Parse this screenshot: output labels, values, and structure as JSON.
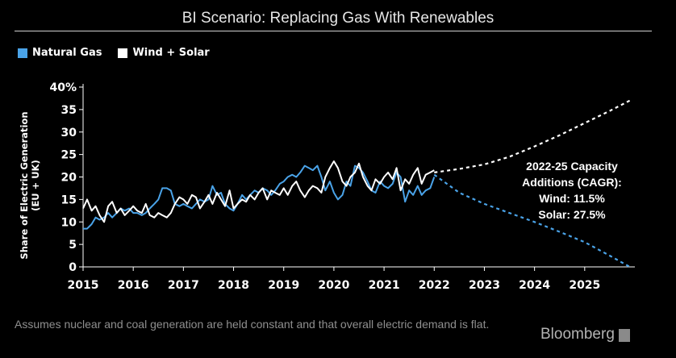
{
  "header": {
    "title": "BI Scenario: Replacing Gas With Renewables"
  },
  "legend": [
    {
      "label": "Natural Gas",
      "color": "#4aa3e8"
    },
    {
      "label": "Wind + Solar",
      "color": "#ffffff"
    }
  ],
  "annotation": {
    "lines": [
      "2022-25 Capacity",
      "Additions (CAGR):",
      "Wind: 11.5%",
      "Solar: 27.5%"
    ]
  },
  "footnote": "Assumes nuclear and coal generation are held constant and that overall electric demand is flat.",
  "brand": "Bloomberg",
  "chart_data": {
    "type": "line",
    "title": "BI Scenario: Replacing Gas With Renewables",
    "ylabel_lines": [
      "Share of Electric Generation",
      "(EU + UK)"
    ],
    "ylim": [
      0,
      40
    ],
    "xlim": [
      2015,
      2026
    ],
    "y_ticks": [
      0,
      5,
      10,
      15,
      20,
      25,
      30,
      35,
      40
    ],
    "y_tick_labels": [
      "0",
      "5",
      "10",
      "15",
      "20",
      "25",
      "30",
      "35",
      "40%"
    ],
    "x_ticks": [
      2015,
      2016,
      2017,
      2018,
      2019,
      2020,
      2021,
      2022,
      2023,
      2024,
      2025
    ],
    "x_tick_labels": [
      "2015",
      "2016",
      "2017",
      "2018",
      "2019",
      "2020",
      "2021",
      "2022",
      "2023",
      "2024",
      "2025"
    ],
    "grid": false,
    "legend_position": "top-left",
    "series": [
      {
        "name": "Natural Gas",
        "color": "#4aa3e8",
        "style": "solid",
        "x": [
          2015.0,
          2015.08,
          2015.17,
          2015.25,
          2015.33,
          2015.42,
          2015.5,
          2015.58,
          2015.67,
          2015.75,
          2015.83,
          2015.92,
          2016.0,
          2016.08,
          2016.17,
          2016.25,
          2016.33,
          2016.42,
          2016.5,
          2016.58,
          2016.67,
          2016.75,
          2016.83,
          2016.92,
          2017.0,
          2017.08,
          2017.17,
          2017.25,
          2017.33,
          2017.42,
          2017.5,
          2017.58,
          2017.67,
          2017.75,
          2017.83,
          2017.92,
          2018.0,
          2018.08,
          2018.17,
          2018.25,
          2018.33,
          2018.42,
          2018.5,
          2018.58,
          2018.67,
          2018.75,
          2018.83,
          2018.92,
          2019.0,
          2019.08,
          2019.17,
          2019.25,
          2019.33,
          2019.42,
          2019.5,
          2019.58,
          2019.67,
          2019.75,
          2019.83,
          2019.92,
          2020.0,
          2020.08,
          2020.17,
          2020.25,
          2020.33,
          2020.42,
          2020.5,
          2020.58,
          2020.67,
          2020.75,
          2020.83,
          2020.92,
          2021.0,
          2021.08,
          2021.17,
          2021.25,
          2021.33,
          2021.42,
          2021.5,
          2021.58,
          2021.67,
          2021.75,
          2021.83,
          2021.92,
          2022.0
        ],
        "values": [
          8.5,
          8.5,
          9.5,
          11,
          10.5,
          11,
          12,
          11,
          12,
          13,
          12.5,
          13,
          12,
          12,
          11.5,
          12,
          13,
          14,
          15,
          17.5,
          17.5,
          17,
          14,
          13.5,
          14,
          13.5,
          13,
          14,
          15,
          14.5,
          15,
          18,
          16,
          16.5,
          14,
          13,
          12.5,
          14,
          16,
          15,
          16,
          17,
          16.5,
          17.5,
          17,
          16,
          17,
          18.5,
          19,
          20,
          20.5,
          20,
          21,
          22.5,
          22,
          21.5,
          22.5,
          20,
          17,
          19,
          16.5,
          15,
          16,
          19,
          18,
          22.5,
          22,
          21,
          19,
          17,
          16.5,
          19,
          18,
          17.5,
          18.5,
          21,
          20,
          14.5,
          17,
          16,
          18,
          16,
          17,
          17.5,
          20
        ]
      },
      {
        "name": "Wind + Solar",
        "color": "#ffffff",
        "style": "solid",
        "x": [
          2015.0,
          2015.08,
          2015.17,
          2015.25,
          2015.33,
          2015.42,
          2015.5,
          2015.58,
          2015.67,
          2015.75,
          2015.83,
          2015.92,
          2016.0,
          2016.08,
          2016.17,
          2016.25,
          2016.33,
          2016.42,
          2016.5,
          2016.58,
          2016.67,
          2016.75,
          2016.83,
          2016.92,
          2017.0,
          2017.08,
          2017.17,
          2017.25,
          2017.33,
          2017.42,
          2017.5,
          2017.58,
          2017.67,
          2017.75,
          2017.83,
          2017.92,
          2018.0,
          2018.08,
          2018.17,
          2018.25,
          2018.33,
          2018.42,
          2018.5,
          2018.58,
          2018.67,
          2018.75,
          2018.83,
          2018.92,
          2019.0,
          2019.08,
          2019.17,
          2019.25,
          2019.33,
          2019.42,
          2019.5,
          2019.58,
          2019.67,
          2019.75,
          2019.83,
          2019.92,
          2020.0,
          2020.08,
          2020.17,
          2020.25,
          2020.33,
          2020.42,
          2020.5,
          2020.58,
          2020.67,
          2020.75,
          2020.83,
          2020.92,
          2021.0,
          2021.08,
          2021.17,
          2021.25,
          2021.33,
          2021.42,
          2021.5,
          2021.58,
          2021.67,
          2021.75,
          2021.83,
          2021.92,
          2022.0
        ],
        "values": [
          13,
          15,
          12.5,
          13.5,
          11.5,
          10,
          13.5,
          14.5,
          12,
          13,
          11.5,
          12.5,
          13.5,
          12.5,
          12,
          14,
          11.5,
          11,
          12,
          11.5,
          11,
          12,
          14,
          15.5,
          15,
          14,
          16,
          15.5,
          13,
          14.5,
          16,
          14,
          16.5,
          15,
          13.5,
          17,
          13,
          14,
          15,
          14.5,
          16,
          15,
          16.5,
          17.5,
          15,
          17,
          16.5,
          16,
          17.5,
          16,
          18,
          19,
          17,
          15.5,
          17,
          18,
          17.5,
          16.5,
          20,
          22,
          23.5,
          22,
          19,
          18,
          20,
          21,
          23,
          20,
          18,
          17,
          19.5,
          18.5,
          20,
          21,
          19.5,
          22,
          17,
          19.5,
          18.5,
          20.5,
          22,
          18.5,
          20.5,
          21,
          21.5
        ]
      },
      {
        "name": "",
        "color": "#ffffff",
        "style": "dashed",
        "x": [
          2022.0,
          2022.5,
          2023.0,
          2023.5,
          2024.0,
          2024.5,
          2025.0,
          2025.5,
          2025.9
        ],
        "values": [
          21,
          21.8,
          22.8,
          24.5,
          26.8,
          29.3,
          32,
          34.7,
          37
        ]
      },
      {
        "name": "",
        "color": "#4aa3e8",
        "style": "dashed",
        "x": [
          2022.0,
          2022.5,
          2023.0,
          2023.5,
          2024.0,
          2024.5,
          2025.0,
          2025.5,
          2025.9
        ],
        "values": [
          20.5,
          16.5,
          14,
          12,
          10,
          7.8,
          5.5,
          2.5,
          0
        ]
      }
    ]
  }
}
